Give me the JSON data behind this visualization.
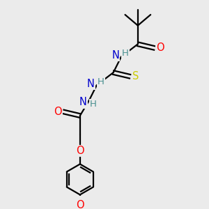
{
  "bg_color": "#ebebeb",
  "atom_colors": {
    "C": "#000000",
    "H": "#4a9090",
    "N": "#0000cc",
    "O": "#ff0000",
    "S": "#cccc00"
  },
  "bond_color": "#000000",
  "bond_width": 1.6,
  "figsize": [
    3.0,
    3.0
  ],
  "dpi": 100
}
